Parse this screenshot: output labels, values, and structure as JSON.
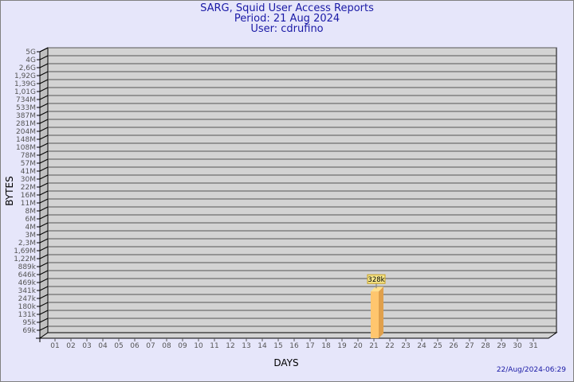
{
  "title": {
    "line1": "SARG, Squid User Access Reports",
    "line2": "Period: 21 Aug 2024",
    "line3": "User: cdrufino"
  },
  "footer": {
    "timestamp": "22/Aug/2024-06:29"
  },
  "chart_data": {
    "type": "bar",
    "style": "3d",
    "xlabel": "DAYS",
    "ylabel": "BYTES",
    "yscale": "log",
    "grid": true,
    "y_tick_labels": [
      "5G",
      "4G",
      "2,6G",
      "1,92G",
      "1,39G",
      "1,01G",
      "734M",
      "533M",
      "387M",
      "281M",
      "204M",
      "148M",
      "108M",
      "78M",
      "57M",
      "41M",
      "30M",
      "22M",
      "16M",
      "11M",
      "8M",
      "6M",
      "4M",
      "3M",
      "2,3M",
      "1,69M",
      "1,22M",
      "889k",
      "646k",
      "469k",
      "341k",
      "247k",
      "180k",
      "131k",
      "95k",
      "69k"
    ],
    "categories": [
      "01",
      "02",
      "03",
      "04",
      "05",
      "06",
      "07",
      "08",
      "09",
      "10",
      "11",
      "12",
      "13",
      "14",
      "15",
      "16",
      "17",
      "18",
      "19",
      "20",
      "21",
      "22",
      "23",
      "24",
      "25",
      "26",
      "27",
      "28",
      "29",
      "30",
      "31"
    ],
    "values": [
      null,
      null,
      null,
      null,
      null,
      null,
      null,
      null,
      null,
      null,
      null,
      null,
      null,
      null,
      null,
      null,
      null,
      null,
      null,
      null,
      328000,
      null,
      null,
      null,
      null,
      null,
      null,
      null,
      null,
      null,
      null
    ],
    "data_labels": {
      "21": "328k"
    },
    "colors": {
      "background": "#e6e6fa",
      "plot": "#d3d3d3",
      "side_wall": "#c0c0c0",
      "bar": "#ffc66e",
      "bar_side": "#e0a04c",
      "bar_top": "#ffe08e",
      "label_box": "#f5e68c",
      "title": "#1a1aa6"
    }
  }
}
